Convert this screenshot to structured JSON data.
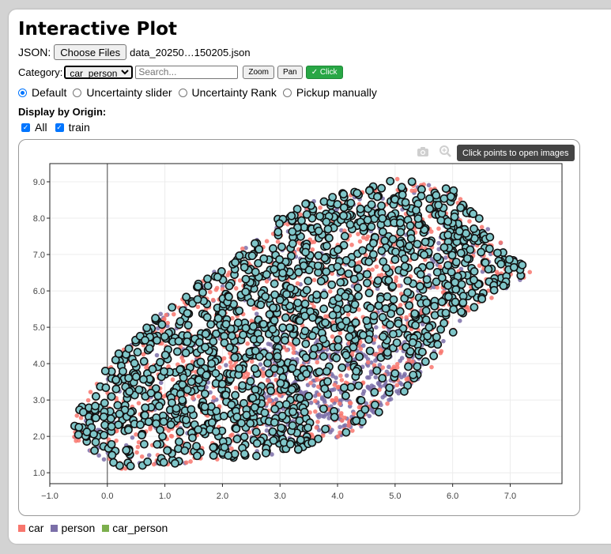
{
  "title": "Interactive Plot",
  "json_row": {
    "label": "JSON:",
    "choose_label": "Choose Files",
    "filename": "data_20250…150205.json"
  },
  "category_row": {
    "label": "Category:",
    "selected": "car_person",
    "search_placeholder": "Search...",
    "zoom_label": "Zoom",
    "pan_label": "Pan",
    "click_label": "✓ Click"
  },
  "modes": [
    {
      "label": "Default",
      "selected": true
    },
    {
      "label": "Uncertainty slider",
      "selected": false
    },
    {
      "label": "Uncertainty Rank",
      "selected": false
    },
    {
      "label": "Pickup manually",
      "selected": false
    }
  ],
  "origin": {
    "heading": "Display by Origin:",
    "options": [
      {
        "label": "All",
        "checked": true
      },
      {
        "label": "train",
        "checked": true
      }
    ]
  },
  "toolbar": {
    "camera_icon": "camera-icon",
    "zoom_icon": "magnifier-icon",
    "tooltip": "Click points to open images"
  },
  "colors": {
    "car": "#f8766d",
    "person": "#7b6fa8",
    "car_person": "#7caf4d",
    "highlight": "#7fc6c9",
    "accent": "#28a745"
  },
  "legend": [
    {
      "label": "car",
      "color": "#f8766d"
    },
    {
      "label": "person",
      "color": "#7b6fa8"
    },
    {
      "label": "car_person",
      "color": "#7caf4d"
    }
  ],
  "chart_data": {
    "type": "scatter",
    "x_ticks": [
      "−1.0",
      "0.0",
      "1.0",
      "2.0",
      "3.0",
      "4.0",
      "5.0",
      "6.0",
      "7.0"
    ],
    "y_ticks": [
      "1.0",
      "2.0",
      "3.0",
      "4.0",
      "5.0",
      "6.0",
      "7.0",
      "8.0",
      "9.0"
    ],
    "xlim": [
      -1.0,
      7.9
    ],
    "ylim": [
      0.7,
      9.5
    ],
    "grid": true,
    "legend_position": "bottom-left",
    "cloud_region": [
      [
        -0.6,
        1.9
      ],
      [
        0.2,
        1.1
      ],
      [
        3.0,
        1.5
      ],
      [
        4.2,
        2.0
      ],
      [
        5.6,
        3.8
      ],
      [
        6.2,
        5.3
      ],
      [
        7.4,
        6.5
      ],
      [
        6.8,
        7.4
      ],
      [
        6.0,
        8.8
      ],
      [
        5.0,
        9.1
      ],
      [
        3.2,
        8.3
      ],
      [
        2.2,
        7.0
      ],
      [
        1.0,
        5.5
      ],
      [
        0.0,
        4.0
      ],
      [
        -0.6,
        2.5
      ]
    ],
    "series": [
      {
        "name": "car",
        "color": "#f8766d",
        "approx_points": 1000
      },
      {
        "name": "person",
        "color": "#7b6fa8",
        "approx_points": 800
      },
      {
        "name": "car_person",
        "color": "#7fc6c9",
        "approx_points": 1500,
        "highlighted": true
      }
    ]
  }
}
